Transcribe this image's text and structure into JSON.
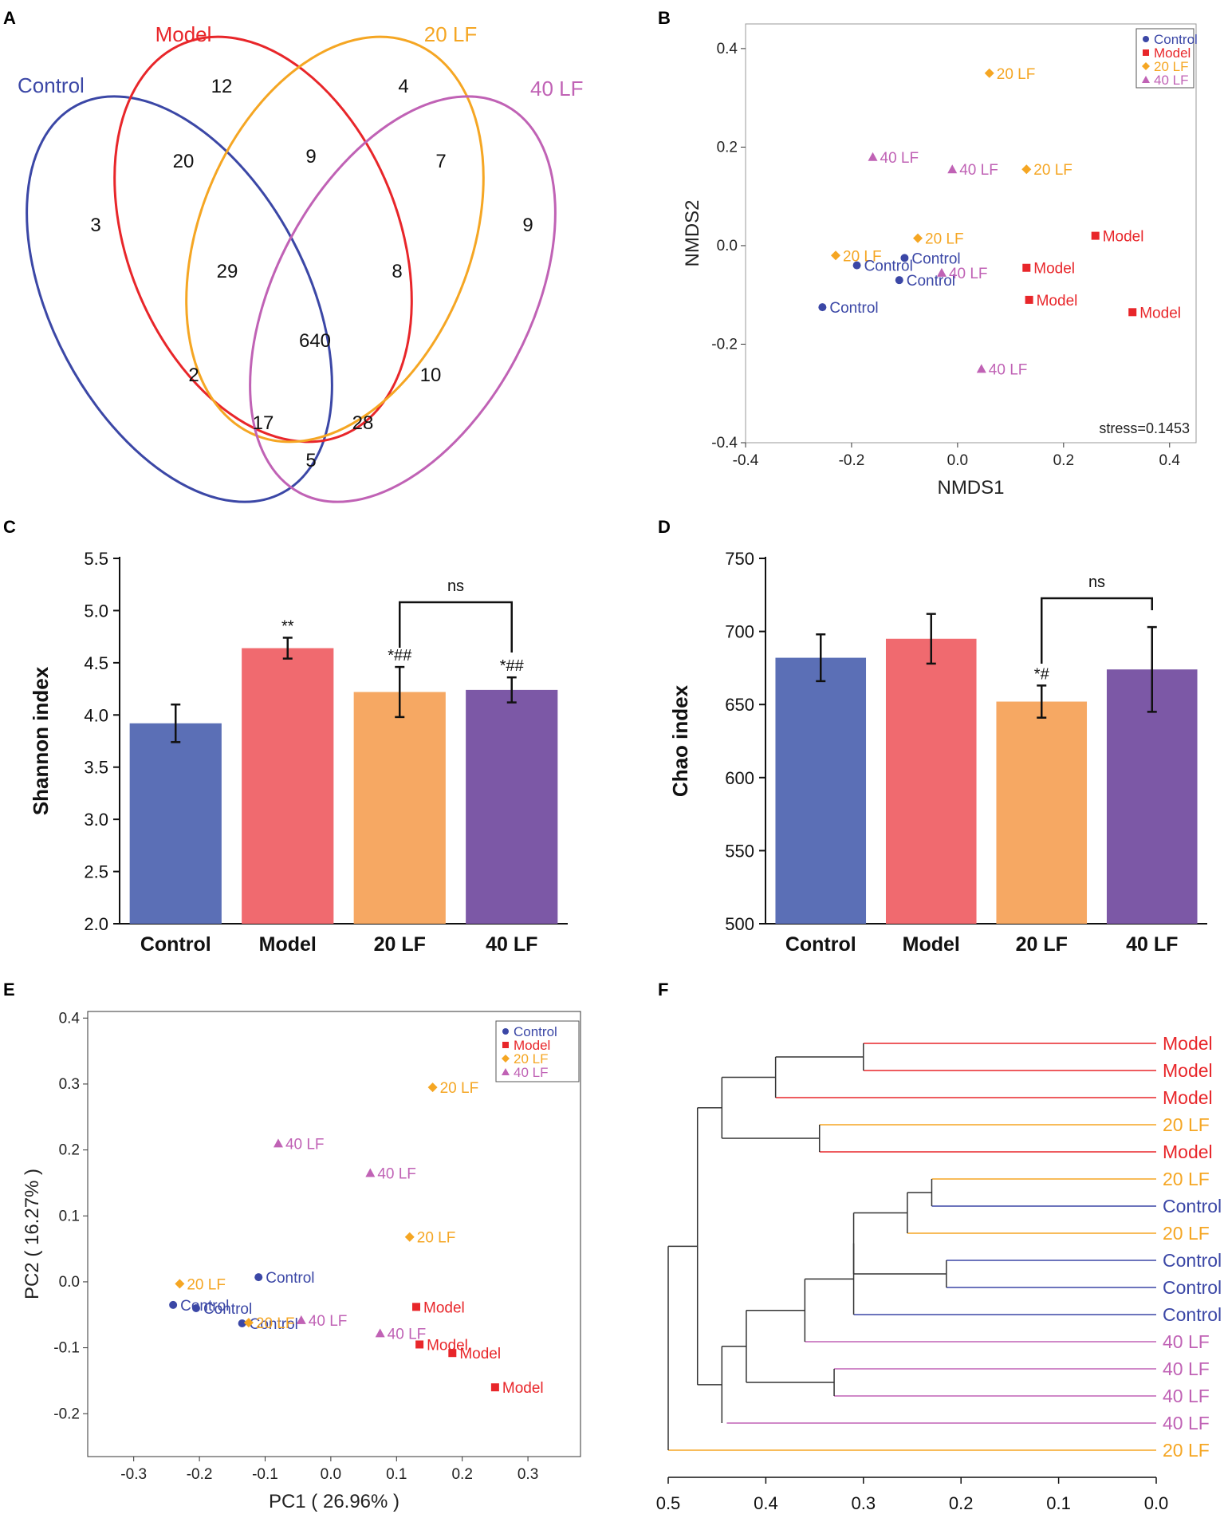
{
  "colors": {
    "control": "#3b47a6",
    "model": "#e8262a",
    "lf20": "#f5a623",
    "lf40": "#c062b5",
    "axis": "#222222",
    "bar_control": "#5b6fb6",
    "bar_model": "#f06a6f",
    "bar_lf20": "#f6a863",
    "bar_lf40": "#7c58a6"
  },
  "panels": {
    "A": "A",
    "B": "B",
    "C": "C",
    "D": "D",
    "E": "E",
    "F": "F"
  },
  "chart_data": [
    {
      "panel": "A",
      "type": "venn",
      "sets": [
        "Control",
        "Model",
        "20 LF",
        "40 LF"
      ],
      "region_counts": {
        "model_only": 12,
        "lf20_only": 4,
        "control_only": 3,
        "lf40_only": 9,
        "control_model": 20,
        "model_lf20": 9,
        "lf20_lf40": 7,
        "control_model_lf20": 29,
        "model_lf20_lf40": 8,
        "all": 640,
        "control_lf20": 2,
        "model_lf40": 10,
        "control_lf20_lf40": 17,
        "control_model_lf40": 28,
        "control_lf40": 5
      }
    },
    {
      "panel": "B",
      "type": "scatter",
      "xlabel": "NMDS1",
      "ylabel": "NMDS2",
      "xlim": [
        -0.4,
        0.45
      ],
      "ylim": [
        -0.4,
        0.45
      ],
      "xticks": [
        "-0.4",
        "-0.2",
        "0.0",
        "0.2",
        "0.4"
      ],
      "yticks": [
        "-0.4",
        "-0.2",
        "0.0",
        "0.2",
        "0.4"
      ],
      "annotation": "stress=0.1453",
      "legend": [
        "Control",
        "Model",
        "20 LF",
        "40 LF"
      ],
      "points": [
        {
          "group": "20 LF",
          "x": 0.06,
          "y": 0.35,
          "label": "20 LF"
        },
        {
          "group": "40 LF",
          "x": -0.16,
          "y": 0.18,
          "label": "40 LF"
        },
        {
          "group": "40 LF",
          "x": -0.01,
          "y": 0.155,
          "label": "40 LF"
        },
        {
          "group": "20 LF",
          "x": 0.13,
          "y": 0.155,
          "label": "20 LF"
        },
        {
          "group": "20 LF",
          "x": -0.075,
          "y": 0.015,
          "label": "20 LF"
        },
        {
          "group": "20 LF",
          "x": -0.23,
          "y": -0.02,
          "label": "20 LF"
        },
        {
          "group": "Control",
          "x": -0.19,
          "y": -0.04,
          "label": "Control"
        },
        {
          "group": "Control",
          "x": -0.1,
          "y": -0.025,
          "label": "Control"
        },
        {
          "group": "Control",
          "x": -0.11,
          "y": -0.07,
          "label": "Control"
        },
        {
          "group": "Control",
          "x": -0.255,
          "y": -0.125,
          "label": "Control"
        },
        {
          "group": "40 LF",
          "x": -0.03,
          "y": -0.055,
          "label": "40 LF"
        },
        {
          "group": "40 LF",
          "x": 0.045,
          "y": -0.25,
          "label": "40 LF"
        },
        {
          "group": "Model",
          "x": 0.26,
          "y": 0.02,
          "label": "Model"
        },
        {
          "group": "Model",
          "x": 0.13,
          "y": -0.045,
          "label": "Model"
        },
        {
          "group": "Model",
          "x": 0.135,
          "y": -0.11,
          "label": "Model"
        },
        {
          "group": "Model",
          "x": 0.33,
          "y": -0.135,
          "label": "Model"
        }
      ]
    },
    {
      "panel": "C",
      "type": "bar",
      "ylabel": "Shannon index",
      "categories": [
        "Control",
        "Model",
        "20 LF",
        "40 LF"
      ],
      "values": [
        3.92,
        4.64,
        4.22,
        4.24
      ],
      "errors": [
        0.18,
        0.1,
        0.24,
        0.12
      ],
      "annotations": [
        "",
        "**",
        "*##",
        "*##"
      ],
      "ylim": [
        2.0,
        5.5
      ],
      "yticks": [
        "2.0",
        "2.5",
        "3.0",
        "3.5",
        "4.0",
        "4.5",
        "5.0",
        "5.5"
      ],
      "bracket": {
        "from": 2,
        "to": 3,
        "label": "ns"
      }
    },
    {
      "panel": "D",
      "type": "bar",
      "ylabel": "Chao index",
      "categories": [
        "Control",
        "Model",
        "20 LF",
        "40 LF"
      ],
      "values": [
        682,
        695,
        652,
        674
      ],
      "errors": [
        16,
        17,
        11,
        29
      ],
      "annotations": [
        "",
        "",
        "*#",
        ""
      ],
      "ylim": [
        500,
        750
      ],
      "yticks": [
        "500",
        "550",
        "600",
        "650",
        "700",
        "750"
      ],
      "bracket": {
        "from": 2,
        "to": 3,
        "label": "ns"
      }
    },
    {
      "panel": "E",
      "type": "scatter",
      "xlabel": "PC1 ( 26.96% )",
      "ylabel": "PC2 ( 16.27% )",
      "xlim": [
        -0.37,
        0.38
      ],
      "ylim": [
        -0.265,
        0.41
      ],
      "xticks": [
        "-0.3",
        "-0.2",
        "-0.1",
        "0.0",
        "0.1",
        "0.2",
        "0.3"
      ],
      "yticks": [
        "-0.2",
        "-0.1",
        "0.0",
        "0.1",
        "0.2",
        "0.3",
        "0.4"
      ],
      "legend": [
        "Control",
        "Model",
        "20 LF",
        "40 LF"
      ],
      "points": [
        {
          "group": "20 LF",
          "x": 0.155,
          "y": 0.295,
          "label": "20 LF"
        },
        {
          "group": "40 LF",
          "x": -0.08,
          "y": 0.21,
          "label": "40 LF"
        },
        {
          "group": "40 LF",
          "x": 0.06,
          "y": 0.165,
          "label": "40 LF"
        },
        {
          "group": "20 LF",
          "x": 0.12,
          "y": 0.068,
          "label": "20 LF"
        },
        {
          "group": "20 LF",
          "x": -0.23,
          "y": -0.003,
          "label": "20 LF"
        },
        {
          "group": "Control",
          "x": -0.11,
          "y": 0.007,
          "label": "Control"
        },
        {
          "group": "Control",
          "x": -0.24,
          "y": -0.035,
          "label": "Control"
        },
        {
          "group": "Control",
          "x": -0.205,
          "y": -0.04,
          "label": "Control"
        },
        {
          "group": "Control",
          "x": -0.135,
          "y": -0.063,
          "label": "Control"
        },
        {
          "group": "20 LF",
          "x": -0.125,
          "y": -0.062,
          "label": "20 LF"
        },
        {
          "group": "40 LF",
          "x": -0.045,
          "y": -0.058,
          "label": "40 LF"
        },
        {
          "group": "40 LF",
          "x": 0.075,
          "y": -0.078,
          "label": "40 LF"
        },
        {
          "group": "Model",
          "x": 0.13,
          "y": -0.038,
          "label": "Model"
        },
        {
          "group": "Model",
          "x": 0.135,
          "y": -0.095,
          "label": "Model"
        },
        {
          "group": "Model",
          "x": 0.185,
          "y": -0.108,
          "label": "Model"
        },
        {
          "group": "Model",
          "x": 0.25,
          "y": -0.16,
          "label": "Model"
        }
      ]
    },
    {
      "panel": "F",
      "type": "dendrogram",
      "xticks": [
        "0.5",
        "0.4",
        "0.3",
        "0.2",
        "0.1",
        "0.0"
      ],
      "xlim": [
        0.5,
        0.0
      ],
      "leaves": [
        "Model",
        "Model",
        "Model",
        "20 LF",
        "Model",
        "20 LF",
        "Control",
        "20 LF",
        "Control",
        "Control",
        "Control",
        "40 LF",
        "40 LF",
        "40 LF",
        "40 LF",
        "20 LF"
      ]
    }
  ]
}
